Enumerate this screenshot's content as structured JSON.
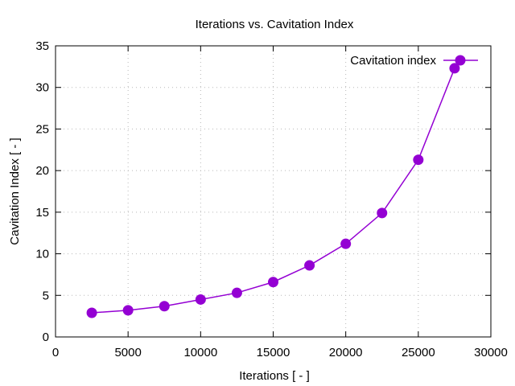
{
  "chart_data": {
    "type": "line",
    "title": "Iterations  vs. Cavitation Index",
    "xlabel": "Iterations [ - ]",
    "ylabel": "Cavitation Index [ - ]",
    "xlim": [
      0,
      30000
    ],
    "ylim": [
      0,
      35
    ],
    "xticks": [
      0,
      5000,
      10000,
      15000,
      20000,
      25000,
      30000
    ],
    "yticks": [
      0,
      5,
      10,
      15,
      20,
      25,
      30,
      35
    ],
    "grid": true,
    "legend_position": "top-right",
    "series": [
      {
        "name": "Cavitation index",
        "color": "#9400d3",
        "marker": "circle",
        "x": [
          2500,
          5000,
          7500,
          10000,
          12500,
          15000,
          17500,
          20000,
          22500,
          25000,
          27500
        ],
        "y": [
          2.9,
          3.2,
          3.7,
          4.5,
          5.3,
          6.6,
          8.6,
          11.2,
          14.9,
          21.3,
          32.3
        ]
      }
    ]
  }
}
